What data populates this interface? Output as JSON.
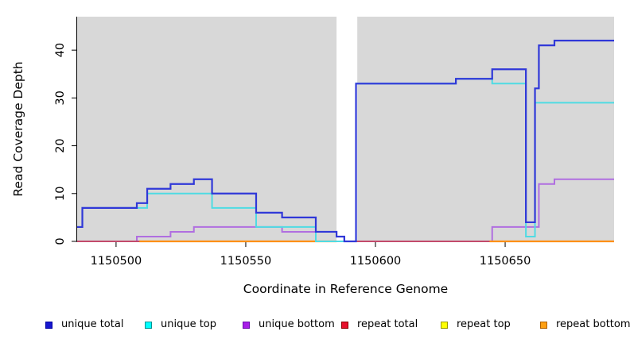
{
  "chart_data": {
    "type": "line",
    "subtype": "step-coverage",
    "title": "",
    "xlabel": "Coordinate in Reference Genome",
    "ylabel": "Read Coverage Depth",
    "xlim": [
      1150485,
      1150692
    ],
    "ylim": [
      0,
      47
    ],
    "x_ticks": [
      1150500,
      1150550,
      1150600,
      1150650
    ],
    "y_ticks": [
      0,
      10,
      20,
      30,
      40
    ],
    "grid": false,
    "legend_position": "bottom",
    "panel_bg": "#d8d8d8",
    "axis_color": "#000000",
    "gap_region": {
      "from": 1150585,
      "to": 1150593,
      "color": "#ffffff"
    },
    "series": [
      {
        "name": "unique bottom",
        "color": "#b06ee0",
        "width": 2,
        "points": [
          [
            1150485,
            0
          ],
          [
            1150508,
            1
          ],
          [
            1150521,
            2
          ],
          [
            1150530,
            3
          ],
          [
            1150564,
            2
          ],
          [
            1150585,
            1
          ],
          [
            1150588,
            0
          ],
          [
            1150645,
            3
          ],
          [
            1150663,
            12
          ],
          [
            1150669,
            13
          ]
        ]
      },
      {
        "name": "repeat top",
        "color": "#ffff00",
        "width": 2,
        "points": [
          [
            1150485,
            0
          ]
        ]
      },
      {
        "name": "repeat total",
        "color": "#c34a6b",
        "width": 2,
        "points": [
          [
            1150485,
            0
          ]
        ]
      },
      {
        "name": "repeat bottom",
        "color": "#ff9015",
        "width": 2.2,
        "flat_segments": [
          {
            "from": 1150509,
            "to": 1150585,
            "value": 0
          },
          {
            "from": 1150644,
            "to": 1150692,
            "value": 0
          }
        ]
      },
      {
        "name": "unique top",
        "color": "#4fdbe3",
        "width": 2,
        "points": [
          [
            1150485,
            3
          ],
          [
            1150487,
            7
          ],
          [
            1150512,
            10
          ],
          [
            1150537,
            7
          ],
          [
            1150554,
            3
          ],
          [
            1150577,
            0
          ],
          [
            1150592.5,
            33
          ],
          [
            1150631,
            34
          ],
          [
            1150645,
            33
          ],
          [
            1150658,
            1
          ],
          [
            1150661.5,
            29
          ]
        ]
      },
      {
        "name": "unique total",
        "color": "#3038d8",
        "width": 2.2,
        "points": [
          [
            1150485,
            3
          ],
          [
            1150487,
            7
          ],
          [
            1150508,
            8
          ],
          [
            1150512,
            11
          ],
          [
            1150521,
            12
          ],
          [
            1150530,
            13
          ],
          [
            1150537,
            10
          ],
          [
            1150554,
            6
          ],
          [
            1150564,
            5
          ],
          [
            1150577,
            2
          ],
          [
            1150585,
            1
          ],
          [
            1150588,
            0
          ],
          [
            1150592.5,
            33
          ],
          [
            1150631,
            34
          ],
          [
            1150645,
            36
          ],
          [
            1150658,
            4
          ],
          [
            1150661.5,
            32
          ],
          [
            1150663,
            41
          ],
          [
            1150669,
            42
          ]
        ]
      }
    ],
    "legend": [
      {
        "label": "unique total",
        "fill": "#1717cf",
        "border": "#0000a0"
      },
      {
        "label": "unique top",
        "fill": "#00ffff",
        "border": "#009090"
      },
      {
        "label": "unique bottom",
        "fill": "#a81ee8",
        "border": "#6a0dad"
      },
      {
        "label": "repeat total",
        "fill": "#e8112d",
        "border": "#8b0000"
      },
      {
        "label": "repeat top",
        "fill": "#ffff00",
        "border": "#9a9a00"
      },
      {
        "label": "repeat bottom",
        "fill": "#ffa013",
        "border": "#b06000"
      }
    ]
  },
  "layout_note": "read coverage depth step chart"
}
